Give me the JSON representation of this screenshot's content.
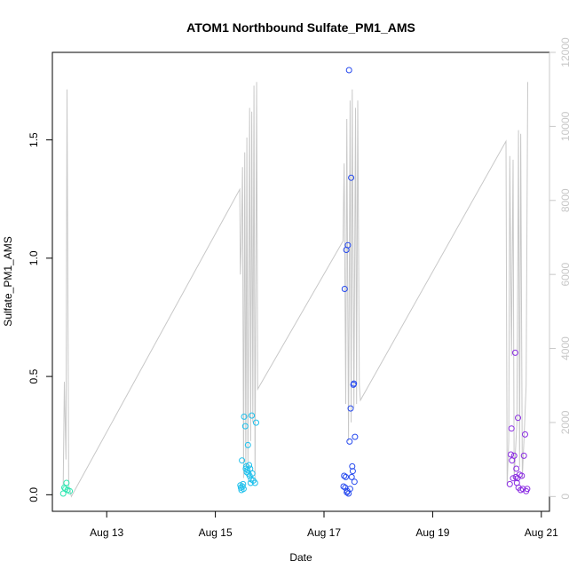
{
  "chart_data": {
    "type": "scatter",
    "title": "ATOM1 Northbound Sulfate_PM1_AMS",
    "xlabel": "Date",
    "ylabel": "Sulfate_PM1_AMS",
    "x_ticks": [
      {
        "label": "Aug 13",
        "day": 13
      },
      {
        "label": "Aug 15",
        "day": 15
      },
      {
        "label": "Aug 17",
        "day": 17
      },
      {
        "label": "Aug 19",
        "day": 19
      },
      {
        "label": "Aug 21",
        "day": 21
      }
    ],
    "xlim_days": [
      12.0,
      21.15
    ],
    "ylim": [
      -0.07,
      1.87
    ],
    "y_ticks": [
      0.0,
      0.5,
      1.0,
      1.5
    ],
    "y_tick_labels": [
      "0.0",
      "0.5",
      "1.0",
      "1.5"
    ],
    "y2_ticks": [
      0,
      2000,
      4000,
      6000,
      8000,
      10000,
      12000
    ],
    "y2_tick_labels": [
      "0",
      "2000",
      "4000",
      "6000",
      "8000",
      "10000",
      "12000"
    ],
    "y2lim": [
      -400,
      12000
    ],
    "y2_color": "#c8c8c8",
    "secondary_line": [
      [
        12.2,
        300
      ],
      [
        12.22,
        3100
      ],
      [
        12.25,
        1000
      ],
      [
        12.27,
        11000
      ],
      [
        12.3,
        300
      ],
      [
        12.35,
        0
      ],
      [
        15.45,
        8300
      ],
      [
        15.46,
        6000
      ],
      [
        15.48,
        7000
      ],
      [
        15.5,
        8900
      ],
      [
        15.52,
        500
      ],
      [
        15.54,
        9300
      ],
      [
        15.56,
        800
      ],
      [
        15.58,
        9700
      ],
      [
        15.6,
        700
      ],
      [
        15.63,
        10500
      ],
      [
        15.65,
        1500
      ],
      [
        15.67,
        10400
      ],
      [
        15.69,
        2000
      ],
      [
        15.71,
        11100
      ],
      [
        15.73,
        400
      ],
      [
        15.76,
        11200
      ],
      [
        15.78,
        2900
      ],
      [
        17.35,
        6900
      ],
      [
        17.37,
        9000
      ],
      [
        17.4,
        2500
      ],
      [
        17.42,
        10200
      ],
      [
        17.45,
        1500
      ],
      [
        17.48,
        10700
      ],
      [
        17.5,
        2000
      ],
      [
        17.52,
        11000
      ],
      [
        17.55,
        2400
      ],
      [
        17.58,
        10500
      ],
      [
        17.6,
        2500
      ],
      [
        17.62,
        10700
      ],
      [
        17.65,
        3000
      ],
      [
        17.67,
        2600
      ],
      [
        20.35,
        9600
      ],
      [
        20.37,
        300
      ],
      [
        20.4,
        1500
      ],
      [
        20.42,
        9200
      ],
      [
        20.45,
        3800
      ],
      [
        20.48,
        9100
      ],
      [
        20.5,
        500
      ],
      [
        20.55,
        2000
      ],
      [
        20.58,
        9900
      ],
      [
        20.6,
        800
      ],
      [
        20.62,
        9800
      ],
      [
        20.65,
        500
      ],
      [
        20.68,
        1500
      ],
      [
        20.72,
        3000
      ],
      [
        20.75,
        11200
      ]
    ],
    "series": [
      {
        "color": "#2ee6b0",
        "points": [
          [
            12.2,
            0.005
          ],
          [
            12.22,
            0.03
          ],
          [
            12.24,
            0.025
          ],
          [
            12.26,
            0.05
          ],
          [
            12.28,
            0.02
          ],
          [
            12.32,
            0.015
          ]
        ]
      },
      {
        "color": "#1ec0ec",
        "points": [
          [
            15.46,
            0.04
          ],
          [
            15.47,
            0.03
          ],
          [
            15.48,
            0.02
          ],
          [
            15.49,
            0.145
          ],
          [
            15.5,
            0.035
          ],
          [
            15.51,
            0.045
          ],
          [
            15.52,
            0.025
          ],
          [
            15.53,
            0.33
          ],
          [
            15.55,
            0.29
          ],
          [
            15.56,
            0.11
          ],
          [
            15.57,
            0.12
          ],
          [
            15.58,
            0.095
          ],
          [
            15.59,
            0.105
          ],
          [
            15.6,
            0.21
          ],
          [
            15.61,
            0.09
          ],
          [
            15.62,
            0.125
          ],
          [
            15.63,
            0.08
          ],
          [
            15.64,
            0.11
          ],
          [
            15.65,
            0.05
          ],
          [
            15.66,
            0.065
          ],
          [
            15.67,
            0.335
          ],
          [
            15.68,
            0.09
          ],
          [
            15.7,
            0.06
          ],
          [
            15.73,
            0.05
          ],
          [
            15.75,
            0.305
          ]
        ]
      },
      {
        "color": "#2448ee",
        "points": [
          [
            17.36,
            0.035
          ],
          [
            17.37,
            0.08
          ],
          [
            17.38,
            0.87
          ],
          [
            17.39,
            0.03
          ],
          [
            17.4,
            0.075
          ],
          [
            17.41,
            1.035
          ],
          [
            17.42,
            0.01
          ],
          [
            17.43,
            0.015
          ],
          [
            17.44,
            1.055
          ],
          [
            17.45,
            0.005
          ],
          [
            17.46,
            1.795
          ],
          [
            17.47,
            0.225
          ],
          [
            17.48,
            0.025
          ],
          [
            17.49,
            0.365
          ],
          [
            17.5,
            1.34
          ],
          [
            17.51,
            0.075
          ],
          [
            17.52,
            0.12
          ],
          [
            17.53,
            0.1
          ],
          [
            17.54,
            0.465
          ],
          [
            17.55,
            0.47
          ],
          [
            17.57,
            0.245
          ],
          [
            17.56,
            0.055
          ]
        ]
      },
      {
        "color": "#8a2be2",
        "points": [
          [
            20.42,
            0.045
          ],
          [
            20.44,
            0.17
          ],
          [
            20.45,
            0.28
          ],
          [
            20.46,
            0.145
          ],
          [
            20.48,
            0.07
          ],
          [
            20.5,
            0.165
          ],
          [
            20.52,
            0.6
          ],
          [
            20.53,
            0.075
          ],
          [
            20.54,
            0.11
          ],
          [
            20.55,
            0.05
          ],
          [
            20.56,
            0.07
          ],
          [
            20.57,
            0.325
          ],
          [
            20.58,
            0.03
          ],
          [
            20.6,
            0.085
          ],
          [
            20.62,
            0.02
          ],
          [
            20.64,
            0.08
          ],
          [
            20.66,
            0.025
          ],
          [
            20.68,
            0.165
          ],
          [
            20.7,
            0.255
          ],
          [
            20.72,
            0.015
          ],
          [
            20.74,
            0.025
          ]
        ]
      }
    ]
  }
}
